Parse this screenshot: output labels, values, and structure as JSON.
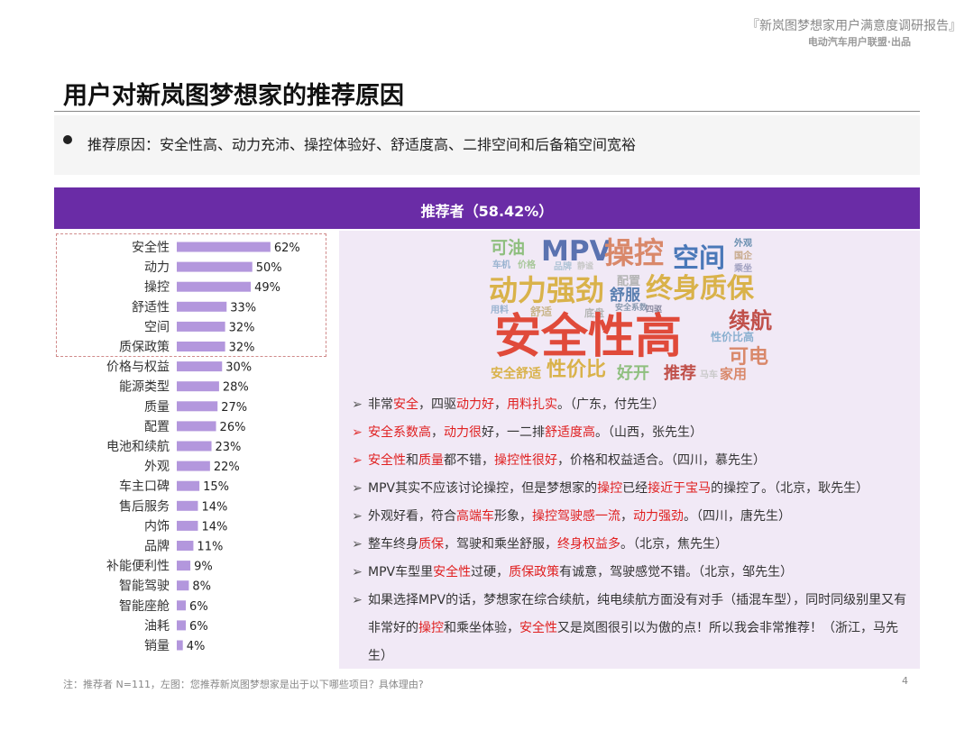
{
  "header": {
    "report_title": "『新岚图梦想家用户满意度调研报告』",
    "report_subtitle": "电动汽车用户联盟·出品"
  },
  "page_title": "用户对新岚图梦想家的推荐原因",
  "summary": "推荐原因：安全性高、动力充沛、操控体验好、舒适度高、二排空间和后备箱空间宽裕",
  "section_header": "推荐者（58.42%）",
  "chart_data": {
    "type": "bar",
    "orientation": "horizontal",
    "categories": [
      "安全性",
      "动力",
      "操控",
      "舒适性",
      "空间",
      "质保政策",
      "价格与权益",
      "能源类型",
      "质量",
      "配置",
      "电池和续航",
      "外观",
      "车主口碑",
      "售后服务",
      "内饰",
      "品牌",
      "补能便利性",
      "智能驾驶",
      "智能座舱",
      "油耗",
      "销量"
    ],
    "values": [
      62,
      50,
      49,
      33,
      32,
      32,
      30,
      28,
      27,
      26,
      23,
      22,
      15,
      14,
      14,
      11,
      9,
      8,
      6,
      6,
      4
    ],
    "value_labels": [
      "62%",
      "50%",
      "49%",
      "33%",
      "32%",
      "32%",
      "30%",
      "28%",
      "27%",
      "26%",
      "23%",
      "22%",
      "15%",
      "14%",
      "14%",
      "11%",
      "9%",
      "8%",
      "6%",
      "6%",
      "4%"
    ],
    "unit": "%",
    "highlighted_top": 6,
    "bar_color": "#b397dd"
  },
  "wordcloud": [
    {
      "text": "可油",
      "color": "#8fbf7f"
    },
    {
      "text": "MPV",
      "color": "#5a72b0"
    },
    {
      "text": "操控",
      "color": "#d9886a"
    },
    {
      "text": "空间",
      "color": "#4a78b8"
    },
    {
      "text": "外观",
      "color": "#6a8fb0"
    },
    {
      "text": "车机",
      "color": "#9ab3d0"
    },
    {
      "text": "价格",
      "color": "#a8c79a"
    },
    {
      "text": "品牌",
      "color": "#b0c4d6"
    },
    {
      "text": "静谧",
      "color": "#c9c9c9"
    },
    {
      "text": "国企",
      "color": "#c7a98a"
    },
    {
      "text": "乘坐",
      "color": "#a0a0c0"
    },
    {
      "text": "配置",
      "color": "#b5b5b5"
    },
    {
      "text": "动力强劲",
      "color": "#d9b24a"
    },
    {
      "text": "舒服",
      "color": "#5a7fb0"
    },
    {
      "text": "终身质保",
      "color": "#d9b24a"
    },
    {
      "text": "用料",
      "color": "#9ab3d0"
    },
    {
      "text": "舒适",
      "color": "#c9b58a"
    },
    {
      "text": "底盘",
      "color": "#b5b5b5"
    },
    {
      "text": "安全系数",
      "color": "#8a9ab0"
    },
    {
      "text": "四驱",
      "color": "#8a8aa0"
    },
    {
      "text": "续航",
      "color": "#c0504a"
    },
    {
      "text": "安全性高",
      "color": "#e04a3a"
    },
    {
      "text": "性价比高",
      "color": "#8ab0d0"
    },
    {
      "text": "可电",
      "color": "#d9886a"
    },
    {
      "text": "安全舒适",
      "color": "#d9b24a"
    },
    {
      "text": "性价比",
      "color": "#d9b24a"
    },
    {
      "text": "好开",
      "color": "#8fbf7f"
    },
    {
      "text": "推荐",
      "color": "#c0504a"
    },
    {
      "text": "马车",
      "color": "#c9c9c9"
    },
    {
      "text": "家用",
      "color": "#d9886a"
    }
  ],
  "quotes": [
    {
      "marker": "grey",
      "parts": [
        {
          "t": "非常"
        },
        {
          "t": "安全",
          "h": true
        },
        {
          "t": "，四驱"
        },
        {
          "t": "动力好",
          "h": true
        },
        {
          "t": "，"
        },
        {
          "t": "用料扎实",
          "h": true
        },
        {
          "t": "。（广东，付先生）"
        }
      ]
    },
    {
      "marker": "red",
      "parts": [
        {
          "t": "安全系数高",
          "h": true
        },
        {
          "t": "，"
        },
        {
          "t": "动力很",
          "h": true
        },
        {
          "t": "好，一二排"
        },
        {
          "t": "舒适度高",
          "h": true
        },
        {
          "t": "。（山西，张先生）"
        }
      ]
    },
    {
      "marker": "red",
      "parts": [
        {
          "t": "安全性",
          "h": true
        },
        {
          "t": "和"
        },
        {
          "t": "质量",
          "h": true
        },
        {
          "t": "都不错，"
        },
        {
          "t": "操控性很好",
          "h": true
        },
        {
          "t": "，价格和权益适合。（四川，慕先生）"
        }
      ]
    },
    {
      "marker": "grey",
      "parts": [
        {
          "t": "MPV其实不应该讨论操控，但是梦想家的"
        },
        {
          "t": "操控",
          "h": true
        },
        {
          "t": "已经"
        },
        {
          "t": "接近于宝马",
          "h": true
        },
        {
          "t": "的操控了。（北京，耿先生）"
        }
      ]
    },
    {
      "marker": "grey",
      "parts": [
        {
          "t": "外观好看，符合"
        },
        {
          "t": "高端车",
          "h": true
        },
        {
          "t": "形象，"
        },
        {
          "t": "操控驾驶感一流",
          "h": true
        },
        {
          "t": "，"
        },
        {
          "t": "动力强劲",
          "h": true
        },
        {
          "t": "。（四川，唐先生）"
        }
      ]
    },
    {
      "marker": "grey",
      "parts": [
        {
          "t": "整车终身"
        },
        {
          "t": "质保",
          "h": true
        },
        {
          "t": "，驾驶和乘坐舒服，"
        },
        {
          "t": "终身权益多",
          "h": true
        },
        {
          "t": "。（北京，焦先生）"
        }
      ]
    },
    {
      "marker": "grey",
      "parts": [
        {
          "t": "MPV车型里"
        },
        {
          "t": "安全性",
          "h": true
        },
        {
          "t": "过硬，"
        },
        {
          "t": "质保政策",
          "h": true
        },
        {
          "t": "有诚意，驾驶感觉不错。（北京，邹先生）"
        }
      ]
    },
    {
      "marker": "grey",
      "parts": [
        {
          "t": "如果选择MPV的话，梦想家在综合续航，纯电续航方面没有对手（插混车型），同时同级别里又有非常好的"
        },
        {
          "t": "操控",
          "h": true
        },
        {
          "t": "和乘坐体验，"
        },
        {
          "t": "安全性",
          "h": true
        },
        {
          "t": "又是岚图很引以为傲的点！所以我会非常推荐！（浙江，马先生）"
        }
      ]
    }
  ],
  "footnote": "注：推荐者 N=111，左图：您推荐新岚图梦想家是出于以下哪些项目？具体理由?",
  "page_number": "4"
}
